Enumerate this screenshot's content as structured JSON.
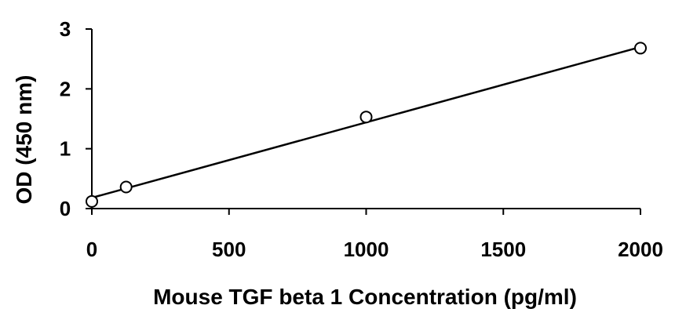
{
  "chart_data": {
    "type": "scatter",
    "xlabel": "Mouse TGF beta 1 Concentration (pg/ml)",
    "ylabel": "OD (450 nm)",
    "xlim": [
      0,
      2000
    ],
    "ylim": [
      0,
      3
    ],
    "x_ticks": [
      0,
      500,
      1000,
      1500,
      2000
    ],
    "y_ticks": [
      0,
      1,
      2,
      3
    ],
    "x_tick_labels": [
      "0",
      "500",
      "1000",
      "1500",
      "2000"
    ],
    "y_tick_labels": [
      "0",
      "1",
      "2",
      "3"
    ],
    "grid": false,
    "series": [
      {
        "x": [
          0,
          125,
          1000,
          2000
        ],
        "y": [
          0.12,
          0.36,
          1.53,
          2.68
        ],
        "marker": "open-circle",
        "trendline": {
          "type": "linear",
          "x": [
            0,
            2000
          ],
          "y": [
            0.18,
            2.7
          ]
        }
      }
    ]
  }
}
